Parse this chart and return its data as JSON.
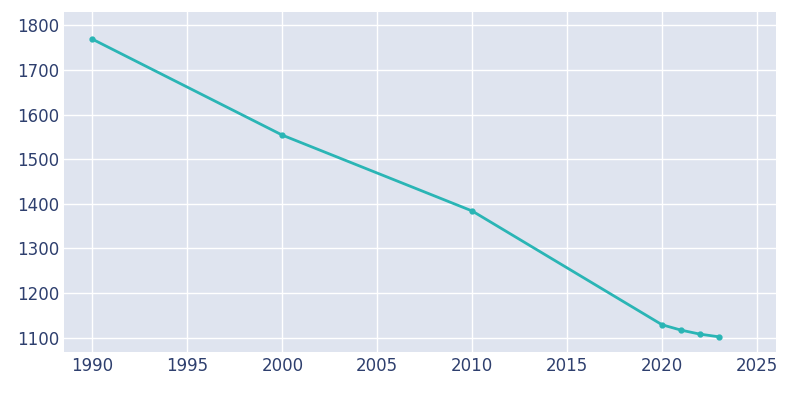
{
  "years": [
    1990,
    2000,
    2010,
    2020,
    2021,
    2022,
    2023
  ],
  "population": [
    1769,
    1554,
    1384,
    1129,
    1117,
    1108,
    1102
  ],
  "line_color": "#2ab5b5",
  "marker": "o",
  "marker_size": 3.5,
  "fig_bg_color": "#ffffff",
  "plot_bg_color": "#dfe4ef",
  "grid_color": "#ffffff",
  "xlim": [
    1988.5,
    2026
  ],
  "ylim": [
    1068,
    1830
  ],
  "xticks": [
    1990,
    1995,
    2000,
    2005,
    2010,
    2015,
    2020,
    2025
  ],
  "yticks": [
    1100,
    1200,
    1300,
    1400,
    1500,
    1600,
    1700,
    1800
  ],
  "tick_color": "#2e3f6e",
  "tick_fontsize": 12,
  "line_width": 2.0
}
